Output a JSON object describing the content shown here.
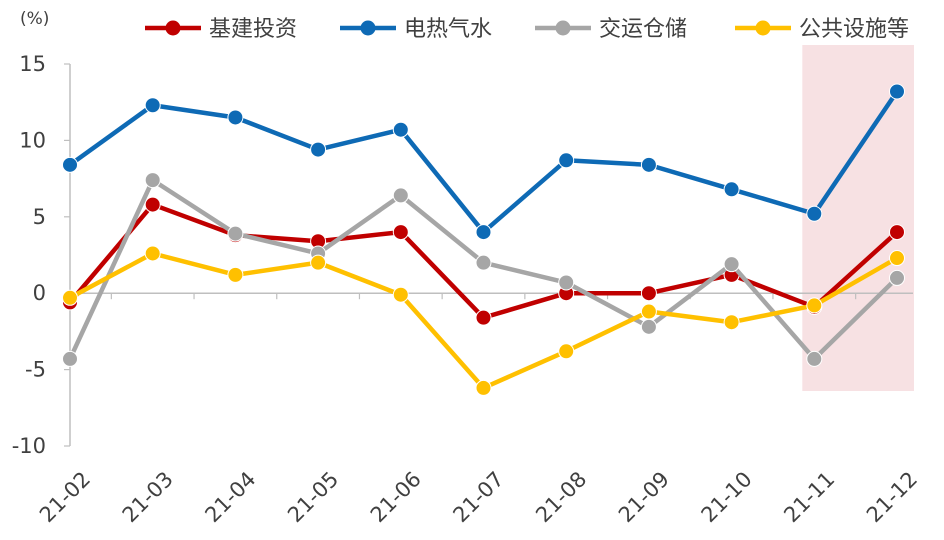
{
  "chart_data": {
    "type": "line",
    "unit_label": "(%)",
    "categories": [
      "21-02",
      "21-03",
      "21-04",
      "21-05",
      "21-06",
      "21-07",
      "21-08",
      "21-09",
      "21-10",
      "21-11",
      "21-12"
    ],
    "ylim": [
      -10,
      15
    ],
    "yticks": [
      15,
      10,
      5,
      0,
      -5,
      -10
    ],
    "highlight_categories": [
      "21-11",
      "21-12"
    ],
    "highlight_color": "#f7e1e3",
    "legend_position": "top",
    "grid": false,
    "series": [
      {
        "name": "基建投资",
        "color": "#c00000",
        "values": [
          -0.6,
          5.8,
          3.8,
          3.4,
          4.0,
          -1.6,
          0.0,
          0.0,
          1.2,
          -0.9,
          4.0
        ]
      },
      {
        "name": "电热气水",
        "color": "#0e6ab5",
        "values": [
          8.4,
          12.3,
          11.5,
          9.4,
          10.7,
          4.0,
          8.7,
          8.4,
          6.8,
          5.2,
          13.2
        ]
      },
      {
        "name": "交运仓储",
        "color": "#a6a6a6",
        "values": [
          -4.3,
          7.4,
          3.9,
          2.6,
          6.4,
          2.0,
          0.7,
          -2.2,
          1.9,
          -4.3,
          1.0
        ]
      },
      {
        "name": "公共设施等",
        "color": "#ffc000",
        "values": [
          -0.3,
          2.6,
          1.2,
          2.0,
          -0.1,
          -6.2,
          -3.8,
          -1.2,
          -1.9,
          -0.8,
          2.3
        ]
      }
    ]
  }
}
